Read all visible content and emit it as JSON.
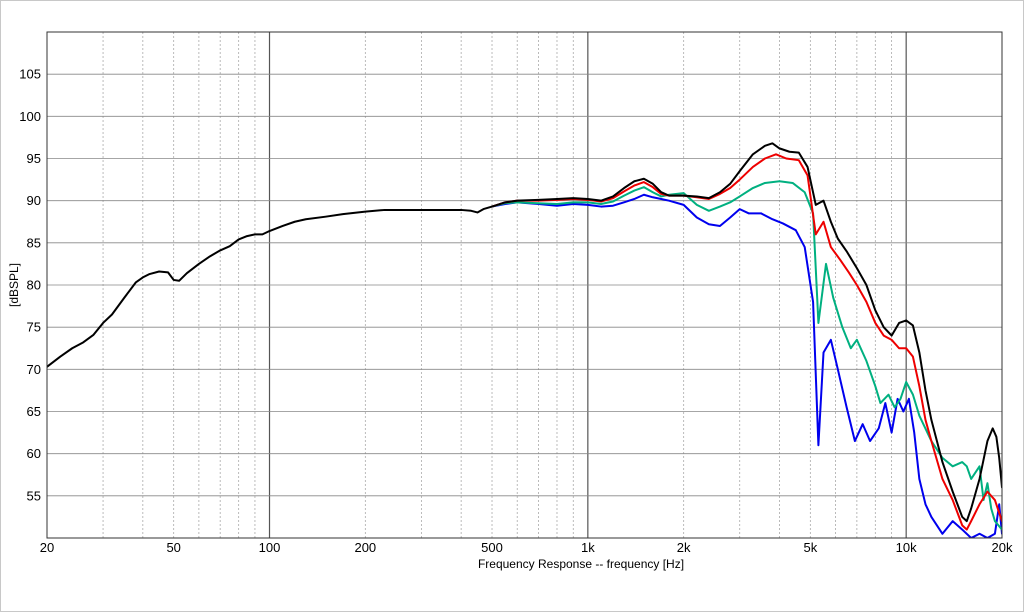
{
  "chart_data": {
    "type": "line",
    "title": "",
    "xlabel": "Frequency Response -- frequency [Hz]",
    "ylabel": "[dBSPL]",
    "xscale": "log",
    "xlim": [
      20,
      20000
    ],
    "ylim": [
      50,
      110
    ],
    "grid": true,
    "legend": "none",
    "x_ticks": [
      {
        "value": 20,
        "label": "20"
      },
      {
        "value": 50,
        "label": "50"
      },
      {
        "value": 100,
        "label": "100"
      },
      {
        "value": 200,
        "label": "200"
      },
      {
        "value": 500,
        "label": "500"
      },
      {
        "value": 1000,
        "label": "1k"
      },
      {
        "value": 2000,
        "label": "2k"
      },
      {
        "value": 5000,
        "label": "5k"
      },
      {
        "value": 10000,
        "label": "10k"
      },
      {
        "value": 20000,
        "label": "20k"
      }
    ],
    "y_ticks": [
      55,
      60,
      65,
      70,
      75,
      80,
      85,
      90,
      95,
      100,
      105
    ],
    "series": [
      {
        "color": "#000000",
        "points": [
          [
            20,
            70.3
          ],
          [
            22,
            71.5
          ],
          [
            24,
            72.5
          ],
          [
            26,
            73.2
          ],
          [
            28,
            74.1
          ],
          [
            30,
            75.5
          ],
          [
            32,
            76.5
          ],
          [
            35,
            78.5
          ],
          [
            38,
            80.3
          ],
          [
            40,
            80.9
          ],
          [
            42,
            81.3
          ],
          [
            45,
            81.6
          ],
          [
            48,
            81.5
          ],
          [
            50,
            80.6
          ],
          [
            52,
            80.5
          ],
          [
            55,
            81.4
          ],
          [
            60,
            82.5
          ],
          [
            65,
            83.4
          ],
          [
            70,
            84.1
          ],
          [
            75,
            84.6
          ],
          [
            80,
            85.4
          ],
          [
            85,
            85.8
          ],
          [
            90,
            86.0
          ],
          [
            95,
            86.0
          ],
          [
            100,
            86.4
          ],
          [
            110,
            87.0
          ],
          [
            120,
            87.5
          ],
          [
            130,
            87.8
          ],
          [
            150,
            88.1
          ],
          [
            170,
            88.4
          ],
          [
            200,
            88.7
          ],
          [
            230,
            88.9
          ],
          [
            260,
            88.9
          ],
          [
            300,
            88.9
          ],
          [
            350,
            88.9
          ],
          [
            400,
            88.9
          ],
          [
            430,
            88.8
          ],
          [
            450,
            88.6
          ],
          [
            470,
            89.0
          ],
          [
            500,
            89.3
          ],
          [
            550,
            89.8
          ],
          [
            600,
            90.0
          ],
          [
            700,
            90.1
          ],
          [
            800,
            90.2
          ],
          [
            900,
            90.3
          ],
          [
            1000,
            90.2
          ],
          [
            1100,
            90.0
          ],
          [
            1200,
            90.5
          ],
          [
            1300,
            91.5
          ],
          [
            1400,
            92.3
          ],
          [
            1500,
            92.6
          ],
          [
            1600,
            92.0
          ],
          [
            1700,
            91.0
          ],
          [
            1800,
            90.6
          ],
          [
            2000,
            90.6
          ],
          [
            2200,
            90.5
          ],
          [
            2400,
            90.3
          ],
          [
            2600,
            91.0
          ],
          [
            2800,
            92.0
          ],
          [
            3000,
            93.5
          ],
          [
            3300,
            95.5
          ],
          [
            3600,
            96.5
          ],
          [
            3800,
            96.8
          ],
          [
            4000,
            96.2
          ],
          [
            4300,
            95.8
          ],
          [
            4600,
            95.7
          ],
          [
            4900,
            94.0
          ],
          [
            5200,
            89.5
          ],
          [
            5500,
            90.0
          ],
          [
            5800,
            87.5
          ],
          [
            6100,
            85.5
          ],
          [
            6500,
            84.0
          ],
          [
            7000,
            82.0
          ],
          [
            7500,
            80.0
          ],
          [
            8000,
            77.0
          ],
          [
            8500,
            75.0
          ],
          [
            9000,
            74.0
          ],
          [
            9500,
            75.5
          ],
          [
            10000,
            75.8
          ],
          [
            10500,
            75.2
          ],
          [
            11000,
            72.0
          ],
          [
            11500,
            67.5
          ],
          [
            12000,
            64.0
          ],
          [
            13000,
            59.0
          ],
          [
            14000,
            55.5
          ],
          [
            15000,
            52.5
          ],
          [
            15500,
            52.0
          ],
          [
            16000,
            53.5
          ],
          [
            17000,
            57.0
          ],
          [
            18000,
            61.5
          ],
          [
            18700,
            63.0
          ],
          [
            19200,
            62.0
          ],
          [
            19600,
            59.5
          ],
          [
            20000,
            56.0
          ]
        ]
      },
      {
        "color": "#ee0000",
        "points": [
          [
            500,
            89.3
          ],
          [
            550,
            89.8
          ],
          [
            600,
            90.0
          ],
          [
            700,
            90.0
          ],
          [
            800,
            90.1
          ],
          [
            900,
            90.2
          ],
          [
            1000,
            90.1
          ],
          [
            1100,
            89.9
          ],
          [
            1200,
            90.3
          ],
          [
            1300,
            91.1
          ],
          [
            1400,
            91.8
          ],
          [
            1500,
            92.2
          ],
          [
            1600,
            91.6
          ],
          [
            1700,
            90.8
          ],
          [
            1800,
            90.6
          ],
          [
            2000,
            90.6
          ],
          [
            2200,
            90.4
          ],
          [
            2400,
            90.2
          ],
          [
            2600,
            90.8
          ],
          [
            2800,
            91.5
          ],
          [
            3000,
            92.5
          ],
          [
            3300,
            94.0
          ],
          [
            3600,
            95.0
          ],
          [
            3900,
            95.5
          ],
          [
            4200,
            95.0
          ],
          [
            4600,
            94.8
          ],
          [
            4900,
            93.0
          ],
          [
            5200,
            86.0
          ],
          [
            5500,
            87.5
          ],
          [
            5800,
            84.5
          ],
          [
            6200,
            83.0
          ],
          [
            6600,
            81.5
          ],
          [
            7000,
            80.0
          ],
          [
            7500,
            78.0
          ],
          [
            8000,
            75.5
          ],
          [
            8500,
            74.0
          ],
          [
            9000,
            73.5
          ],
          [
            9500,
            72.5
          ],
          [
            10000,
            72.5
          ],
          [
            10500,
            71.5
          ],
          [
            11000,
            68.0
          ],
          [
            11500,
            64.0
          ],
          [
            12000,
            61.5
          ],
          [
            13000,
            57.0
          ],
          [
            14000,
            54.5
          ],
          [
            15000,
            51.5
          ],
          [
            15500,
            51.0
          ],
          [
            16000,
            52.0
          ],
          [
            17000,
            54.0
          ],
          [
            18000,
            55.5
          ],
          [
            19000,
            54.5
          ],
          [
            20000,
            52.0
          ]
        ]
      },
      {
        "color": "#00b080",
        "points": [
          [
            500,
            89.3
          ],
          [
            550,
            89.7
          ],
          [
            600,
            89.8
          ],
          [
            700,
            89.7
          ],
          [
            800,
            89.6
          ],
          [
            900,
            89.8
          ],
          [
            1000,
            89.8
          ],
          [
            1100,
            89.6
          ],
          [
            1200,
            89.9
          ],
          [
            1300,
            90.6
          ],
          [
            1400,
            91.2
          ],
          [
            1500,
            91.6
          ],
          [
            1600,
            91.0
          ],
          [
            1700,
            90.5
          ],
          [
            1800,
            90.7
          ],
          [
            2000,
            90.9
          ],
          [
            2200,
            89.5
          ],
          [
            2400,
            88.8
          ],
          [
            2600,
            89.3
          ],
          [
            2800,
            89.8
          ],
          [
            3000,
            90.5
          ],
          [
            3300,
            91.5
          ],
          [
            3600,
            92.1
          ],
          [
            4000,
            92.3
          ],
          [
            4400,
            92.1
          ],
          [
            4800,
            91.0
          ],
          [
            5100,
            88.5
          ],
          [
            5300,
            75.5
          ],
          [
            5600,
            82.5
          ],
          [
            5900,
            78.5
          ],
          [
            6300,
            75.0
          ],
          [
            6700,
            72.5
          ],
          [
            7000,
            73.5
          ],
          [
            7500,
            71.0
          ],
          [
            8000,
            68.0
          ],
          [
            8300,
            66.0
          ],
          [
            8800,
            67.0
          ],
          [
            9200,
            65.5
          ],
          [
            9600,
            66.5
          ],
          [
            10000,
            68.5
          ],
          [
            10500,
            67.0
          ],
          [
            11000,
            64.5
          ],
          [
            12000,
            61.5
          ],
          [
            13000,
            59.5
          ],
          [
            14000,
            58.5
          ],
          [
            15000,
            59.0
          ],
          [
            15500,
            58.5
          ],
          [
            16000,
            57.0
          ],
          [
            17000,
            58.5
          ],
          [
            17500,
            54.5
          ],
          [
            18000,
            56.5
          ],
          [
            18500,
            53.5
          ],
          [
            19000,
            52.0
          ],
          [
            20000,
            51.0
          ]
        ]
      },
      {
        "color": "#0000ee",
        "points": [
          [
            500,
            89.3
          ],
          [
            550,
            89.6
          ],
          [
            600,
            89.8
          ],
          [
            700,
            89.6
          ],
          [
            800,
            89.4
          ],
          [
            900,
            89.6
          ],
          [
            1000,
            89.5
          ],
          [
            1100,
            89.3
          ],
          [
            1200,
            89.4
          ],
          [
            1300,
            89.8
          ],
          [
            1400,
            90.2
          ],
          [
            1500,
            90.7
          ],
          [
            1600,
            90.4
          ],
          [
            1700,
            90.2
          ],
          [
            1800,
            90.0
          ],
          [
            2000,
            89.5
          ],
          [
            2200,
            88.0
          ],
          [
            2400,
            87.2
          ],
          [
            2600,
            87.0
          ],
          [
            2800,
            88.0
          ],
          [
            3000,
            89.0
          ],
          [
            3200,
            88.5
          ],
          [
            3500,
            88.5
          ],
          [
            3800,
            87.8
          ],
          [
            4100,
            87.3
          ],
          [
            4500,
            86.5
          ],
          [
            4800,
            84.5
          ],
          [
            5100,
            78.0
          ],
          [
            5300,
            61.0
          ],
          [
            5500,
            72.0
          ],
          [
            5800,
            73.5
          ],
          [
            6100,
            70.0
          ],
          [
            6500,
            65.5
          ],
          [
            6900,
            61.5
          ],
          [
            7300,
            63.5
          ],
          [
            7700,
            61.5
          ],
          [
            8200,
            63.0
          ],
          [
            8600,
            66.0
          ],
          [
            9000,
            62.5
          ],
          [
            9400,
            66.5
          ],
          [
            9800,
            65.0
          ],
          [
            10200,
            66.5
          ],
          [
            10600,
            62.5
          ],
          [
            11000,
            57.0
          ],
          [
            11500,
            54.0
          ],
          [
            12000,
            52.5
          ],
          [
            13000,
            50.5
          ],
          [
            14000,
            52.0
          ],
          [
            15000,
            51.0
          ],
          [
            16000,
            50.0
          ],
          [
            17000,
            50.5
          ],
          [
            18000,
            50.0
          ],
          [
            19000,
            50.5
          ],
          [
            19600,
            54.0
          ],
          [
            20000,
            50.5
          ]
        ]
      }
    ]
  }
}
